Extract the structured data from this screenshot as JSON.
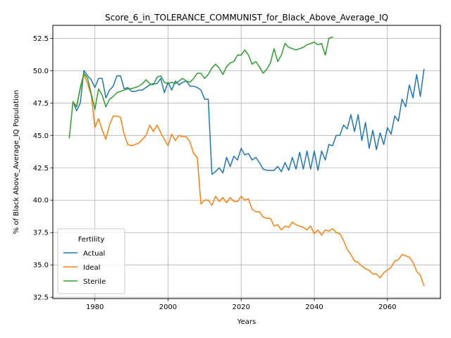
{
  "chart_data": {
    "type": "line",
    "title": "Score_6_in_TOLERANCE_COMMUNIST_for_Black_Above_Average_IQ",
    "xlabel": "Years",
    "ylabel": "% of Black Above_Average_IQ Population",
    "xlim": [
      1968.5,
      2074.5
    ],
    "ylim": [
      32.4,
      53.5
    ],
    "xticks": [
      1980,
      2000,
      2020,
      2040,
      2060
    ],
    "yticks": [
      32.5,
      35.0,
      37.5,
      40.0,
      42.5,
      45.0,
      47.5,
      50.0,
      52.5
    ],
    "grid": true,
    "legend": {
      "title": "Fertility",
      "position": "lower-left"
    },
    "series": [
      {
        "name": "Actual",
        "color": "#1f77b4",
        "x": [
          1974,
          1975,
          1976,
          1977,
          1978,
          1979,
          1980,
          1981,
          1982,
          1983,
          1984,
          1985,
          1986,
          1987,
          1988,
          1989,
          1990,
          1991,
          1992,
          1993,
          1994,
          1995,
          1996,
          1997,
          1998,
          1999,
          2000,
          2001,
          2002,
          2003,
          2004,
          2005,
          2006,
          2007,
          2008,
          2009,
          2010,
          2011,
          2012,
          2013,
          2014,
          2015,
          2016,
          2017,
          2018,
          2019,
          2020,
          2021,
          2022,
          2023,
          2024,
          2025,
          2026,
          2027,
          2028,
          2029,
          2030,
          2031,
          2032,
          2033,
          2034,
          2035,
          2036,
          2037,
          2038,
          2039,
          2040,
          2041,
          2042,
          2043,
          2044,
          2045,
          2046,
          2047,
          2048,
          2049,
          2050,
          2051,
          2052,
          2053,
          2054,
          2055,
          2056,
          2057,
          2058,
          2059,
          2060,
          2061,
          2062,
          2063,
          2064,
          2065,
          2066,
          2067,
          2068,
          2069,
          2070
        ],
        "y": [
          47.6,
          46.9,
          47.5,
          50.0,
          49.6,
          49.3,
          48.7,
          49.4,
          49.4,
          47.9,
          48.5,
          48.8,
          49.6,
          49.6,
          48.6,
          48.7,
          48.4,
          48.4,
          48.5,
          48.5,
          48.7,
          48.9,
          49.0,
          49.0,
          49.4,
          48.3,
          49.1,
          48.5,
          49.2,
          48.9,
          49.1,
          49.2,
          48.8,
          48.8,
          48.7,
          48.5,
          47.8,
          47.8,
          42.0,
          42.2,
          42.5,
          42.1,
          43.3,
          42.6,
          43.4,
          43.1,
          44.0,
          43.5,
          43.6,
          43.1,
          43.3,
          42.9,
          42.4,
          42.3,
          42.3,
          42.3,
          42.6,
          42.2,
          42.9,
          42.3,
          43.3,
          42.4,
          43.7,
          42.4,
          43.8,
          42.4,
          43.8,
          42.3,
          43.8,
          43.1,
          44.3,
          44.2,
          45.0,
          45.0,
          45.8,
          45.5,
          46.6,
          45.3,
          46.6,
          44.6,
          46.0,
          44.0,
          45.4,
          43.9,
          45.2,
          44.3,
          45.6,
          45.1,
          46.5,
          46.1,
          47.8,
          47.2,
          48.9,
          47.9,
          49.7,
          48.0,
          50.1
        ]
      },
      {
        "name": "Ideal",
        "color": "#ff7f0e",
        "x": [
          1974,
          1975,
          1976,
          1977,
          1978,
          1979,
          1980,
          1981,
          1982,
          1983,
          1984,
          1985,
          1986,
          1987,
          1988,
          1989,
          1990,
          1991,
          1992,
          1993,
          1994,
          1995,
          1996,
          1997,
          1998,
          1999,
          2000,
          2001,
          2002,
          2003,
          2004,
          2005,
          2006,
          2007,
          2008,
          2009,
          2010,
          2011,
          2012,
          2013,
          2014,
          2015,
          2016,
          2017,
          2018,
          2019,
          2020,
          2021,
          2022,
          2023,
          2024,
          2025,
          2026,
          2027,
          2028,
          2029,
          2030,
          2031,
          2032,
          2033,
          2034,
          2035,
          2036,
          2037,
          2038,
          2039,
          2040,
          2041,
          2042,
          2043,
          2044,
          2045,
          2046,
          2047,
          2048,
          2049,
          2050,
          2051,
          2052,
          2053,
          2054,
          2055,
          2056,
          2057,
          2058,
          2059,
          2060,
          2061,
          2062,
          2063,
          2064,
          2065,
          2066,
          2067,
          2068,
          2069,
          2070
        ],
        "y": [
          47.5,
          47.3,
          48.6,
          49.7,
          49.0,
          48.1,
          45.6,
          46.3,
          45.4,
          44.7,
          45.8,
          46.5,
          46.5,
          46.4,
          45.1,
          44.3,
          44.2,
          44.3,
          44.4,
          44.7,
          45.0,
          45.8,
          45.3,
          45.8,
          45.2,
          44.7,
          44.2,
          45.1,
          44.6,
          45.0,
          44.9,
          44.9,
          44.5,
          43.6,
          43.3,
          39.7,
          40.0,
          40.0,
          39.6,
          40.3,
          39.9,
          40.2,
          39.8,
          40.2,
          39.9,
          39.9,
          40.3,
          40.0,
          40.1,
          39.3,
          39.1,
          39.1,
          38.7,
          38.6,
          38.6,
          38.0,
          38.1,
          37.7,
          38.0,
          37.9,
          38.3,
          38.1,
          38.0,
          37.9,
          37.7,
          38.0,
          37.4,
          37.7,
          37.3,
          37.7,
          37.6,
          37.8,
          37.5,
          37.4,
          36.9,
          36.2,
          35.8,
          35.3,
          35.2,
          34.9,
          34.7,
          34.6,
          34.3,
          34.3,
          34.0,
          34.4,
          34.6,
          34.8,
          35.3,
          35.4,
          35.8,
          35.7,
          35.6,
          35.2,
          34.5,
          34.2,
          33.4
        ]
      },
      {
        "name": "Sterile",
        "color": "#2ca02c",
        "x": [
          1973,
          1974,
          1975,
          1976,
          1977,
          1978,
          1979,
          1980,
          1981,
          1982,
          1983,
          1984,
          1985,
          1986,
          1987,
          1988,
          1989,
          1990,
          1991,
          1992,
          1993,
          1994,
          1995,
          1996,
          1997,
          1998,
          1999,
          2000,
          2001,
          2002,
          2003,
          2004,
          2005,
          2006,
          2007,
          2008,
          2009,
          2010,
          2011,
          2012,
          2013,
          2014,
          2015,
          2016,
          2017,
          2018,
          2019,
          2020,
          2021,
          2022,
          2023,
          2024,
          2025,
          2026,
          2027,
          2028,
          2029,
          2030,
          2031,
          2032,
          2033,
          2034,
          2035,
          2036,
          2037,
          2038,
          2039,
          2040,
          2041,
          2042,
          2043,
          2044,
          2045
        ],
        "y": [
          44.8,
          47.6,
          47.2,
          48.7,
          49.8,
          49.4,
          48.2,
          47.0,
          48.6,
          48.1,
          47.2,
          47.8,
          48.0,
          48.3,
          48.4,
          48.5,
          48.6,
          48.6,
          48.7,
          48.8,
          49.0,
          49.3,
          49.0,
          48.9,
          49.5,
          49.6,
          49.1,
          49.0,
          49.1,
          49.0,
          49.2,
          49.4,
          49.2,
          49.1,
          49.4,
          49.8,
          49.8,
          49.4,
          49.7,
          50.2,
          50.5,
          50.2,
          49.7,
          50.3,
          50.6,
          50.7,
          51.2,
          51.2,
          51.6,
          51.2,
          50.5,
          50.7,
          50.3,
          49.8,
          50.1,
          50.6,
          51.7,
          50.7,
          51.2,
          52.1,
          51.8,
          51.7,
          51.6,
          51.7,
          51.8,
          52.0,
          52.1,
          52.2,
          52.0,
          52.1,
          51.2,
          52.5,
          52.6
        ]
      }
    ]
  }
}
